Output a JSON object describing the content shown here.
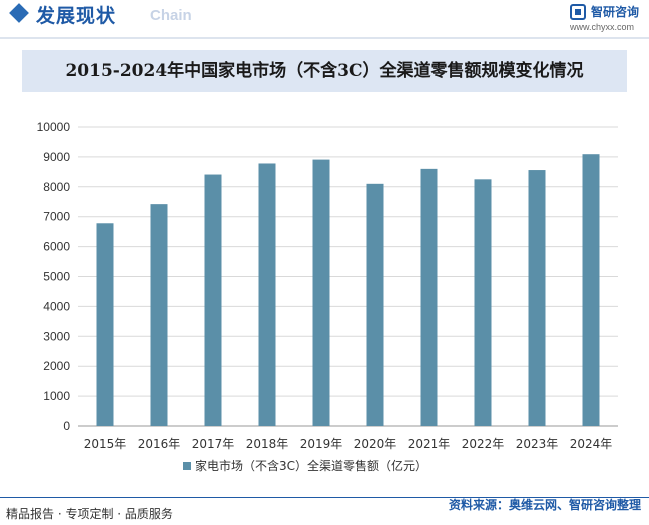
{
  "header": {
    "title": "发展现状",
    "subtitle": "Chain",
    "logo_name": "智研咨询",
    "logo_url": "www.chyxx.com"
  },
  "colors": {
    "bar": "#5b8fa8",
    "accent": "#1f5aa6",
    "title_bg": "#dde6f3"
  },
  "chart_data": {
    "type": "bar",
    "title": "2015-2024年中国家电市场（不含3C）全渠道零售额规模变化情况",
    "categories": [
      "2015年",
      "2016年",
      "2017年",
      "2018年",
      "2019年",
      "2020年",
      "2021年",
      "2022年",
      "2023年",
      "2024年"
    ],
    "series": [
      {
        "name": "家电市场（不含3C）全渠道零售额（亿元）",
        "values": [
          6780,
          7420,
          8410,
          8780,
          8910,
          8100,
          8600,
          8250,
          8560,
          9090
        ]
      }
    ],
    "ylim": [
      0,
      10000
    ],
    "yticks": [
      "0",
      "1000",
      "2000",
      "3000",
      "4000",
      "5000",
      "6000",
      "7000",
      "8000",
      "9000",
      "10000"
    ],
    "xlabel": "",
    "ylabel": "",
    "grid": true,
    "legend": "bottom"
  },
  "footer": {
    "left": "精品报告 · 专项定制 · 品质服务",
    "source": "资料来源：奥维云网、智研咨询整理"
  }
}
